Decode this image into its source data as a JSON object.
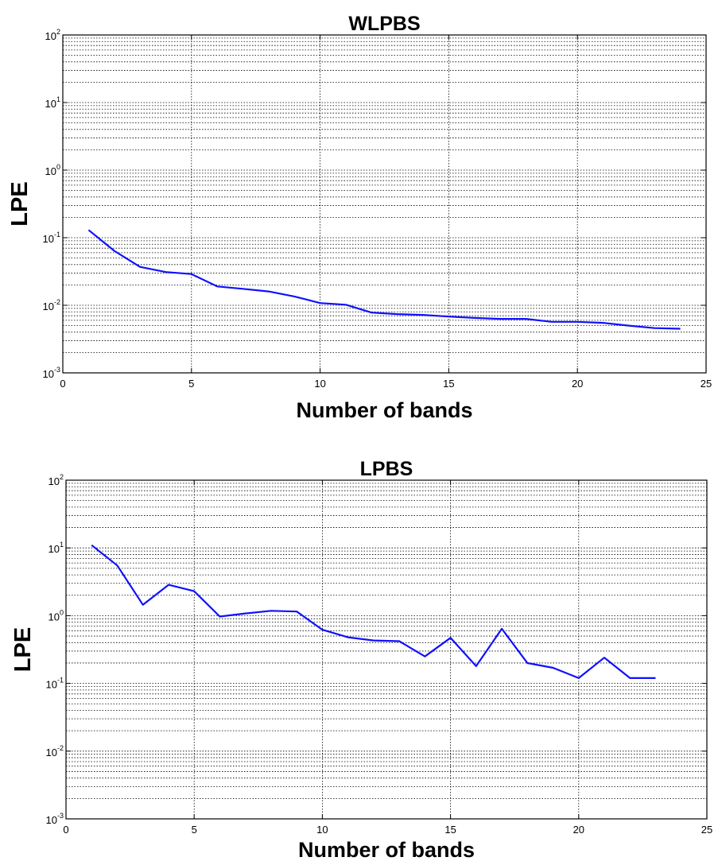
{
  "chart_data": [
    {
      "type": "line",
      "title": "WLPBS",
      "xlabel": "Number of bands",
      "ylabel": "LPE",
      "yscale": "log",
      "xlim": [
        0,
        25
      ],
      "ylim": [
        0.001,
        100
      ],
      "x_ticks": [
        "0",
        "5",
        "10",
        "15",
        "20",
        "25"
      ],
      "y_ticks": [
        {
          "base": "10",
          "exp": "-3"
        },
        {
          "base": "10",
          "exp": "-2"
        },
        {
          "base": "10",
          "exp": "-1"
        },
        {
          "base": "10",
          "exp": "0"
        },
        {
          "base": "10",
          "exp": "1"
        },
        {
          "base": "10",
          "exp": "2"
        }
      ],
      "grid": true,
      "line_color": "#1010ff",
      "series": [
        {
          "x": [
            1,
            2,
            3,
            4,
            5,
            6,
            7,
            8,
            9,
            10,
            11,
            12,
            13,
            14,
            15,
            16,
            17,
            18,
            19,
            20,
            21,
            22,
            23,
            24
          ],
          "values": [
            0.13,
            0.064,
            0.037,
            0.031,
            0.029,
            0.019,
            0.0175,
            0.016,
            0.0135,
            0.0108,
            0.0102,
            0.0078,
            0.0074,
            0.0072,
            0.0068,
            0.0065,
            0.0063,
            0.0063,
            0.0057,
            0.0057,
            0.0055,
            0.005,
            0.0046,
            0.0045
          ]
        }
      ]
    },
    {
      "type": "line",
      "title": "LPBS",
      "xlabel": "Number of bands",
      "ylabel": "LPE",
      "yscale": "log",
      "xlim": [
        0,
        25
      ],
      "ylim": [
        0.001,
        100
      ],
      "x_ticks": [
        "0",
        "5",
        "10",
        "15",
        "20",
        "25"
      ],
      "y_ticks": [
        {
          "base": "10",
          "exp": "-3"
        },
        {
          "base": "10",
          "exp": "-2"
        },
        {
          "base": "10",
          "exp": "-1"
        },
        {
          "base": "10",
          "exp": "0"
        },
        {
          "base": "10",
          "exp": "1"
        },
        {
          "base": "10",
          "exp": "2"
        }
      ],
      "grid": true,
      "line_color": "#1010ff",
      "series": [
        {
          "x": [
            1,
            2,
            3,
            4,
            5,
            6,
            7,
            8,
            9,
            10,
            11,
            12,
            13,
            14,
            15,
            16,
            17,
            18,
            19,
            20,
            21,
            22,
            23
          ],
          "values": [
            11,
            5.5,
            1.45,
            2.85,
            2.3,
            0.97,
            1.08,
            1.18,
            1.15,
            0.62,
            0.48,
            0.43,
            0.42,
            0.25,
            0.47,
            0.18,
            0.64,
            0.2,
            0.17,
            0.12,
            0.24,
            0.12,
            0.12
          ]
        }
      ]
    }
  ]
}
